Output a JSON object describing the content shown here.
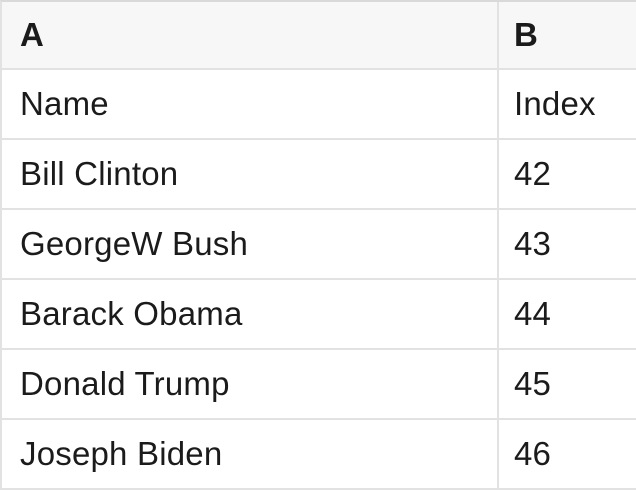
{
  "table": {
    "headers": [
      "A",
      "B"
    ],
    "rows": [
      {
        "a": "Name",
        "b": "Index"
      },
      {
        "a": "Bill Clinton",
        "b": "42"
      },
      {
        "a": "GeorgeW Bush",
        "b": "43"
      },
      {
        "a": "Barack Obama",
        "b": "44"
      },
      {
        "a": "Donald Trump",
        "b": "45"
      },
      {
        "a": "Joseph Biden",
        "b": "46"
      }
    ]
  },
  "colors": {
    "header_bg": "#f7f7f7",
    "border_color": "#e2e2e2",
    "outer_border_color": "#d9d9d9",
    "text_color": "#1b1b1b"
  }
}
